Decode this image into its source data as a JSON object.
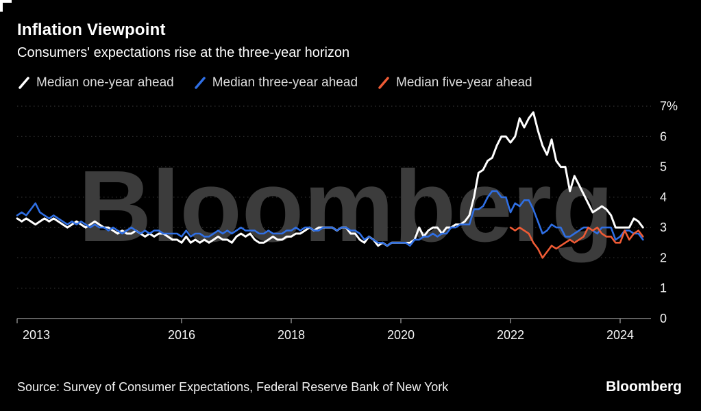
{
  "header": {
    "title": "Inflation Viewpoint",
    "subtitle": "Consumers' expectations rise at the three-year horizon"
  },
  "legend": [
    {
      "label": "Median one-year ahead",
      "color": "#ffffff"
    },
    {
      "label": "Median three-year ahead",
      "color": "#2f6fe4"
    },
    {
      "label": "Median five-year ahead",
      "color": "#ef5b35"
    }
  ],
  "watermark": "Bloomberg",
  "footer": {
    "source": "Source: Survey of Consumer Expectations, Federal Reserve Bank of New York",
    "brand": "Bloomberg"
  },
  "colors": {
    "background": "#000000",
    "grid": "#3e3e3e",
    "axis": "#9a9a9a",
    "watermark": "#3c3c3c",
    "label": "#f5f5f5"
  },
  "chart_data": {
    "type": "line",
    "title": "Inflation Viewpoint",
    "subtitle": "Consumers' expectations rise at the three-year horizon",
    "source": "Survey of Consumer Expectations, Federal Reserve Bank of New York",
    "grid": "dotted-horizontal",
    "legend_position": "top",
    "ylim": [
      0,
      7
    ],
    "y_ticks": [
      {
        "v": 7,
        "label": "7%"
      },
      {
        "v": 6,
        "label": "6"
      },
      {
        "v": 5,
        "label": "5"
      },
      {
        "v": 4,
        "label": "4"
      },
      {
        "v": 3,
        "label": "3"
      },
      {
        "v": 2,
        "label": "2"
      },
      {
        "v": 1,
        "label": "1"
      },
      {
        "v": 0,
        "label": "0"
      }
    ],
    "x_ticks": [
      {
        "v": 2013,
        "label": "2013"
      },
      {
        "v": 2016,
        "label": "2016"
      },
      {
        "v": 2018,
        "label": "2018"
      },
      {
        "v": 2020,
        "label": "2020"
      },
      {
        "v": 2022,
        "label": "2022"
      },
      {
        "v": 2024,
        "label": "2024"
      }
    ],
    "x_unit": "year",
    "x_step_years": 0.0833333,
    "series": [
      {
        "name": "Median one-year ahead",
        "color": "#ffffff",
        "start": 2013.0,
        "values": [
          3.3,
          3.2,
          3.3,
          3.2,
          3.1,
          3.2,
          3.3,
          3.2,
          3.3,
          3.2,
          3.1,
          3.0,
          3.1,
          3.2,
          3.1,
          3.0,
          3.1,
          3.2,
          3.1,
          3.0,
          3.0,
          2.9,
          2.8,
          2.9,
          2.8,
          2.8,
          2.9,
          2.8,
          2.7,
          2.8,
          2.7,
          2.8,
          2.8,
          2.7,
          2.6,
          2.6,
          2.5,
          2.7,
          2.5,
          2.6,
          2.5,
          2.6,
          2.5,
          2.6,
          2.7,
          2.6,
          2.6,
          2.5,
          2.7,
          2.8,
          2.7,
          2.8,
          2.6,
          2.5,
          2.5,
          2.6,
          2.7,
          2.6,
          2.6,
          2.7,
          2.7,
          2.8,
          2.8,
          2.9,
          3.0,
          2.9,
          3.0,
          3.0,
          3.0,
          3.0,
          2.9,
          3.0,
          3.0,
          2.8,
          2.8,
          2.6,
          2.5,
          2.7,
          2.6,
          2.4,
          2.5,
          2.4,
          2.5,
          2.5,
          2.5,
          2.5,
          2.5,
          2.6,
          3.0,
          2.7,
          2.9,
          3.0,
          3.0,
          2.8,
          3.0,
          3.0,
          3.1,
          3.1,
          3.2,
          3.4,
          4.0,
          4.8,
          4.9,
          5.2,
          5.3,
          5.7,
          6.0,
          6.0,
          5.8,
          6.0,
          6.6,
          6.3,
          6.6,
          6.8,
          6.2,
          5.7,
          5.4,
          5.9,
          5.2,
          5.0,
          5.0,
          4.2,
          4.7,
          4.4,
          4.1,
          3.8,
          3.5,
          3.6,
          3.7,
          3.6,
          3.4,
          3.0,
          3.0,
          3.0,
          3.0,
          3.3,
          3.2,
          3.0
        ]
      },
      {
        "name": "Median three-year ahead",
        "color": "#2f6fe4",
        "start": 2013.0,
        "values": [
          3.4,
          3.5,
          3.4,
          3.6,
          3.8,
          3.5,
          3.4,
          3.3,
          3.4,
          3.3,
          3.2,
          3.1,
          3.2,
          3.1,
          3.2,
          3.1,
          3.0,
          3.1,
          3.0,
          3.0,
          2.9,
          3.0,
          2.9,
          2.8,
          2.9,
          3.0,
          2.9,
          2.8,
          2.9,
          2.8,
          2.9,
          2.9,
          2.8,
          2.8,
          2.8,
          2.8,
          2.7,
          2.9,
          2.7,
          2.8,
          2.8,
          2.7,
          2.7,
          2.8,
          2.9,
          2.8,
          2.9,
          2.8,
          2.9,
          3.0,
          2.9,
          2.9,
          2.9,
          2.8,
          2.8,
          2.9,
          2.8,
          2.8,
          2.8,
          2.9,
          2.9,
          3.0,
          2.9,
          3.0,
          3.0,
          2.9,
          2.9,
          3.0,
          3.0,
          3.0,
          2.9,
          3.0,
          3.0,
          2.9,
          2.9,
          2.8,
          2.6,
          2.7,
          2.6,
          2.5,
          2.5,
          2.4,
          2.5,
          2.5,
          2.5,
          2.5,
          2.4,
          2.6,
          2.6,
          2.7,
          2.7,
          2.8,
          2.7,
          2.8,
          2.8,
          3.0,
          3.0,
          3.1,
          3.1,
          3.1,
          3.6,
          3.6,
          3.7,
          4.0,
          4.2,
          4.2,
          4.0,
          4.0,
          3.5,
          3.8,
          3.7,
          3.9,
          3.9,
          3.6,
          3.2,
          2.8,
          2.9,
          3.1,
          3.0,
          3.0,
          2.7,
          2.7,
          2.8,
          2.9,
          3.0,
          3.0,
          2.9,
          2.8,
          3.0,
          3.0,
          3.0,
          2.6,
          2.7,
          2.9,
          2.9,
          2.8,
          2.8,
          2.6
        ]
      },
      {
        "name": "Median five-year ahead",
        "color": "#ef5b35",
        "start": 2022.0,
        "values": [
          3.0,
          2.9,
          3.0,
          2.9,
          2.8,
          2.5,
          2.3,
          2.0,
          2.2,
          2.4,
          2.3,
          2.4,
          2.5,
          2.6,
          2.5,
          2.6,
          2.7,
          3.0,
          2.9,
          3.0,
          2.8,
          2.7,
          2.7,
          2.5,
          2.5,
          2.9,
          2.6,
          2.8,
          2.9,
          2.7
        ]
      }
    ]
  }
}
